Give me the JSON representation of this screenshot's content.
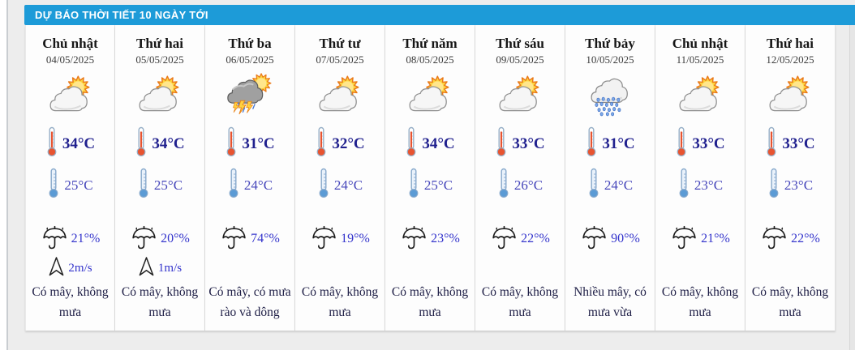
{
  "header": {
    "title": "DỰ BÁO THỜI TIẾT 10 NGÀY TỚI"
  },
  "colors": {
    "accent_blue": "#1d9bd8",
    "header_text": "#ffffff",
    "high_temp": "#20208e",
    "low_temp": "#4747bb",
    "rain_wind_text": "#3434cc",
    "day_name": "#161616",
    "date_text": "#3c3c3c",
    "description_text": "#1c1c44",
    "card_background": "#fdfdfd",
    "page_background": "#ededed"
  },
  "days": [
    {
      "day_name": "Chủ nhật",
      "date": "04/05/2025",
      "icon": "sun-behind-cloud",
      "temp_high": "34°C",
      "temp_low": "25°C",
      "rain": "21°%",
      "wind": "2m/s",
      "description": "Có mây, không mưa"
    },
    {
      "day_name": "Thứ hai",
      "date": "05/05/2025",
      "icon": "sun-behind-cloud",
      "temp_high": "34°C",
      "temp_low": "25°C",
      "rain": "20°%",
      "wind": "1m/s",
      "description": "Có mây, không mưa"
    },
    {
      "day_name": "Thứ ba",
      "date": "06/05/2025",
      "icon": "thunderstorm-sun",
      "temp_high": "31°C",
      "temp_low": "24°C",
      "rain": "74°%",
      "wind": null,
      "description": "Có mây, có mưa rào và dông"
    },
    {
      "day_name": "Thứ tư",
      "date": "07/05/2025",
      "icon": "sun-behind-cloud",
      "temp_high": "32°C",
      "temp_low": "24°C",
      "rain": "19°%",
      "wind": null,
      "description": "Có mây, không mưa"
    },
    {
      "day_name": "Thứ năm",
      "date": "08/05/2025",
      "icon": "sun-behind-cloud",
      "temp_high": "34°C",
      "temp_low": "25°C",
      "rain": "23°%",
      "wind": null,
      "description": "Có mây, không mưa"
    },
    {
      "day_name": "Thứ sáu",
      "date": "09/05/2025",
      "icon": "sun-behind-cloud",
      "temp_high": "33°C",
      "temp_low": "26°C",
      "rain": "22°%",
      "wind": null,
      "description": "Có mây, không mưa"
    },
    {
      "day_name": "Thứ bảy",
      "date": "10/05/2025",
      "icon": "rain-shower-cloud",
      "temp_high": "31°C",
      "temp_low": "24°C",
      "rain": "90°%",
      "wind": null,
      "description": "Nhiều mây, có mưa vừa"
    },
    {
      "day_name": "Chủ nhật",
      "date": "11/05/2025",
      "icon": "sun-behind-cloud",
      "temp_high": "33°C",
      "temp_low": "23°C",
      "rain": "21°%",
      "wind": null,
      "description": "Có mây, không mưa"
    },
    {
      "day_name": "Thứ hai",
      "date": "12/05/2025",
      "icon": "sun-behind-cloud",
      "temp_high": "33°C",
      "temp_low": "23°C",
      "rain": "22°%",
      "wind": null,
      "description": "Có mây, không mưa"
    }
  ]
}
